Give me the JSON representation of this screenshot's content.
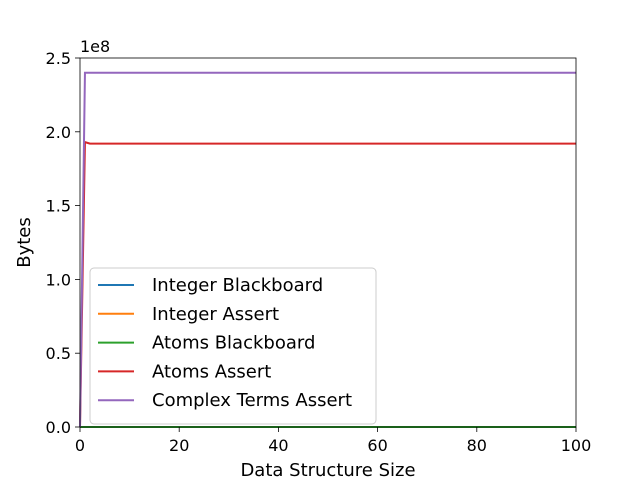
{
  "chart_data": {
    "type": "line",
    "title": "",
    "xlabel": "Data Structure Size",
    "ylabel": "Bytes",
    "xlim": [
      0,
      100
    ],
    "ylim": [
      0,
      250000000
    ],
    "y_offset_label": "1e8",
    "y_tick_scale": 100000000,
    "x_ticks": [
      0,
      20,
      40,
      60,
      80,
      100
    ],
    "x_tick_labels": [
      "0",
      "20",
      "40",
      "60",
      "80",
      "100"
    ],
    "y_ticks": [
      0,
      50000000,
      100000000,
      150000000,
      200000000,
      250000000
    ],
    "y_tick_labels": [
      "0.0",
      "0.5",
      "1.0",
      "1.5",
      "2.0",
      "2.5"
    ],
    "grid": false,
    "legend_position": "lower-left",
    "series": [
      {
        "name": "Integer Blackboard",
        "color": "#1f77b4",
        "x": [
          0,
          1,
          2,
          100
        ],
        "values": [
          0,
          0,
          0,
          0
        ]
      },
      {
        "name": "Integer Assert",
        "color": "#ff7f0e",
        "x": [
          0,
          1,
          2,
          100
        ],
        "values": [
          0,
          0,
          0,
          0
        ]
      },
      {
        "name": "Atoms Blackboard",
        "color": "#2ca02c",
        "x": [
          0,
          1,
          2,
          100
        ],
        "values": [
          0,
          0,
          0,
          0
        ]
      },
      {
        "name": "Atoms Assert",
        "color": "#d62728",
        "x": [
          0,
          1,
          2,
          100
        ],
        "values": [
          0,
          193000000,
          192000000,
          192000000
        ]
      },
      {
        "name": "Complex Terms Assert",
        "color": "#9467bd",
        "x": [
          0,
          1,
          100
        ],
        "values": [
          0,
          240000000,
          240000000
        ]
      }
    ]
  }
}
